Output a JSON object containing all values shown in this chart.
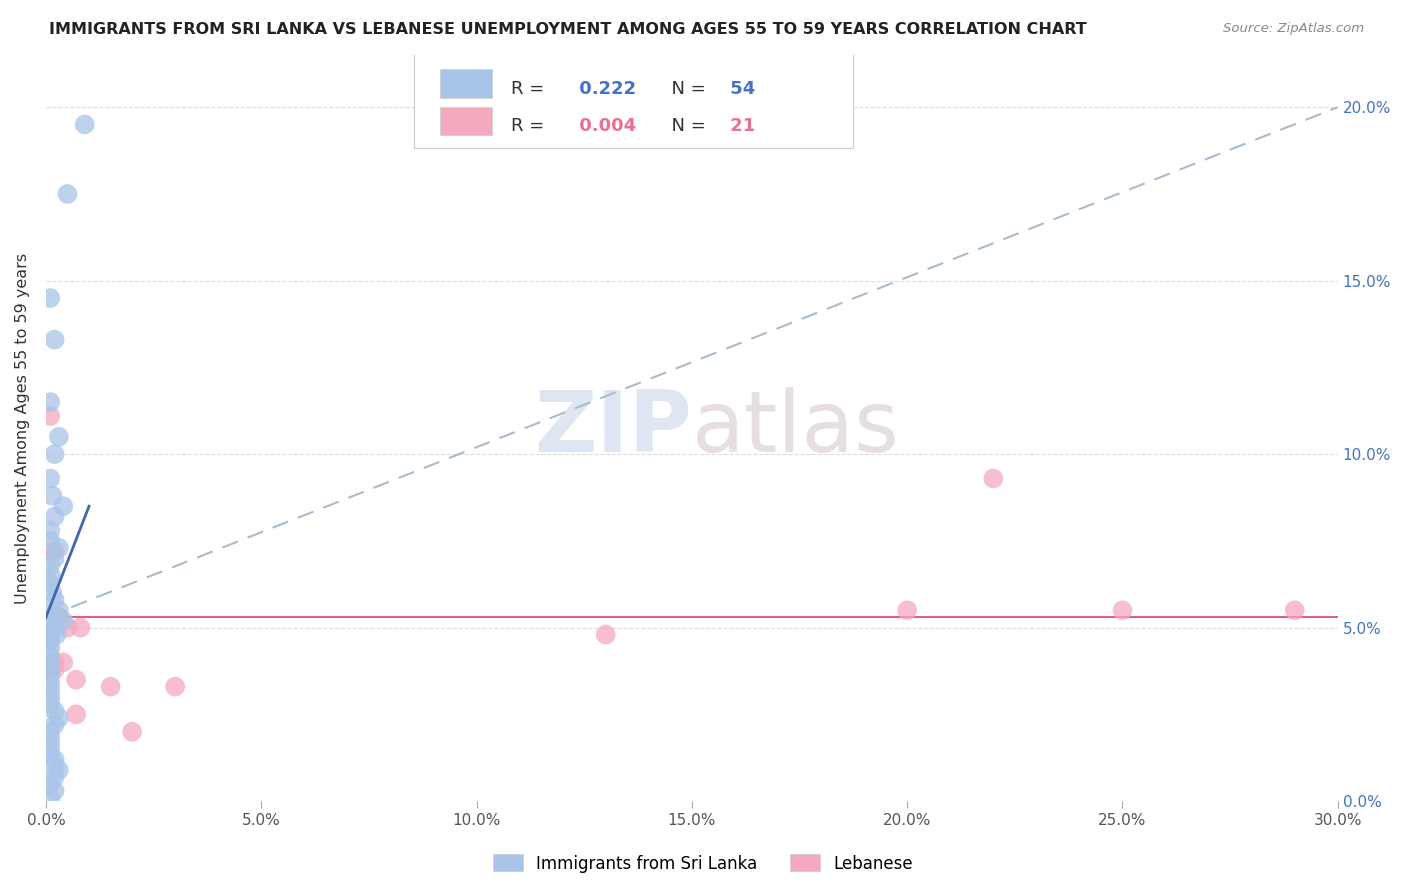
{
  "title": "IMMIGRANTS FROM SRI LANKA VS LEBANESE UNEMPLOYMENT AMONG AGES 55 TO 59 YEARS CORRELATION CHART",
  "source": "Source: ZipAtlas.com",
  "ylabel": "Unemployment Among Ages 55 to 59 years",
  "xlim": [
    0.0,
    0.3
  ],
  "ylim": [
    0.0,
    0.215
  ],
  "xticks": [
    0.0,
    0.05,
    0.1,
    0.15,
    0.2,
    0.25,
    0.3
  ],
  "yticks": [
    0.0,
    0.05,
    0.1,
    0.15,
    0.2
  ],
  "ytick_labels_right": [
    "0.0%",
    "5.0%",
    "10.0%",
    "15.0%",
    "20.0%"
  ],
  "xtick_labels": [
    "0.0%",
    "5.0%",
    "10.0%",
    "15.0%",
    "20.0%",
    "25.0%",
    "30.0%"
  ],
  "sri_lanka_color": "#a8c4e8",
  "lebanese_color": "#f4a8be",
  "sri_lanka_line_color": "#aabbcc",
  "lebanese_line_color": "#e06080",
  "watermark_zip": "ZIP",
  "watermark_atlas": "atlas",
  "sl_R": "0.222",
  "sl_N": "54",
  "lb_R": "0.004",
  "lb_N": "21",
  "sl_x": [
    0.005,
    0.009,
    0.001,
    0.002,
    0.001,
    0.003,
    0.002,
    0.001,
    0.0015,
    0.004,
    0.002,
    0.001,
    0.001,
    0.003,
    0.002,
    0.001,
    0.0012,
    0.0008,
    0.0015,
    0.002,
    0.003,
    0.004,
    0.002,
    0.0025,
    0.001,
    0.001,
    0.0008,
    0.001,
    0.001,
    0.001,
    0.001,
    0.001,
    0.001,
    0.001,
    0.002,
    0.003,
    0.002,
    0.001,
    0.001,
    0.001,
    0.001,
    0.002,
    0.002,
    0.003,
    0.002,
    0.001,
    0.002,
    0.001,
    0.001,
    0.0005,
    0.0005,
    0.001,
    0.001,
    0.0008
  ],
  "sl_y": [
    0.175,
    0.195,
    0.145,
    0.133,
    0.115,
    0.105,
    0.1,
    0.093,
    0.088,
    0.085,
    0.082,
    0.078,
    0.075,
    0.073,
    0.07,
    0.068,
    0.065,
    0.063,
    0.06,
    0.058,
    0.055,
    0.052,
    0.05,
    0.048,
    0.046,
    0.044,
    0.042,
    0.04,
    0.038,
    0.036,
    0.034,
    0.032,
    0.03,
    0.028,
    0.026,
    0.024,
    0.022,
    0.02,
    0.018,
    0.016,
    0.014,
    0.012,
    0.01,
    0.009,
    0.007,
    0.005,
    0.003,
    0.001,
    0.054,
    0.053,
    0.051,
    0.05,
    0.049,
    0.047
  ],
  "lb_x": [
    0.001,
    0.002,
    0.001,
    0.003,
    0.003,
    0.005,
    0.002,
    0.004,
    0.007,
    0.007,
    0.015,
    0.02,
    0.03,
    0.13,
    0.2,
    0.22,
    0.25,
    0.29,
    0.002,
    0.001,
    0.008
  ],
  "lb_y": [
    0.111,
    0.072,
    0.072,
    0.053,
    0.053,
    0.05,
    0.04,
    0.04,
    0.035,
    0.025,
    0.033,
    0.02,
    0.033,
    0.048,
    0.055,
    0.093,
    0.055,
    0.055,
    0.038,
    0.038,
    0.05
  ],
  "sl_trendline_x": [
    0.0,
    0.3
  ],
  "sl_trendline_y": [
    0.053,
    0.2
  ],
  "lb_trendline_x": [
    0.0,
    0.3
  ],
  "lb_trendline_y": [
    0.053,
    0.053
  ]
}
